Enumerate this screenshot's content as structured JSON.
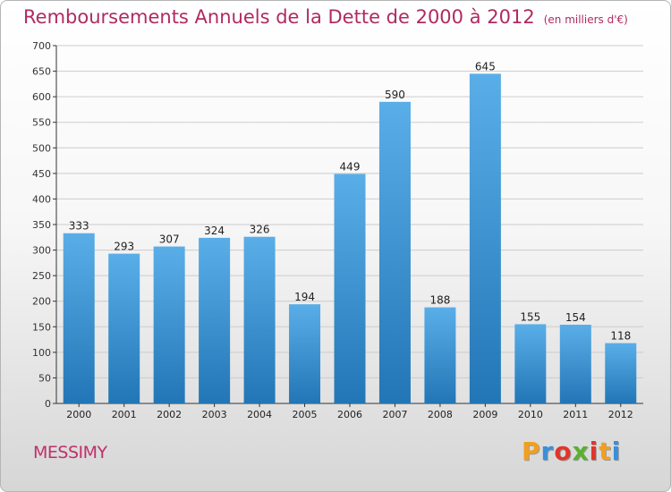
{
  "header": {
    "title": "Remboursements Annuels de la Dette de 2000 à 2012",
    "subtitle": "(en milliers d'€)"
  },
  "footer": {
    "commune": "MESSIMY",
    "logo": "Proxiti",
    "logo_letters": [
      {
        "char": "P",
        "color": "#f0a020"
      },
      {
        "char": "r",
        "color": "#3a8fd8"
      },
      {
        "char": "o",
        "color": "#e0352b"
      },
      {
        "char": "x",
        "color": "#5ab030"
      },
      {
        "char": "i",
        "color": "#e0352b"
      },
      {
        "char": "t",
        "color": "#f0a020"
      },
      {
        "char": "i",
        "color": "#3a8fd8"
      }
    ]
  },
  "colors": {
    "bar_top": "#5aaee8",
    "bar_bottom": "#2276b6",
    "grid": "#cccccc",
    "axis": "#333333"
  },
  "chart_data": {
    "type": "bar",
    "categories": [
      "2000",
      "2001",
      "2002",
      "2003",
      "2004",
      "2005",
      "2006",
      "2007",
      "2008",
      "2009",
      "2010",
      "2011",
      "2012"
    ],
    "values": [
      333,
      293,
      307,
      324,
      326,
      194,
      449,
      590,
      188,
      645,
      155,
      154,
      118
    ],
    "ylim": [
      0,
      700
    ],
    "yticks": [
      0,
      50,
      100,
      150,
      200,
      250,
      300,
      350,
      400,
      450,
      500,
      550,
      600,
      650,
      700
    ],
    "grid": true,
    "data_labels": true
  }
}
